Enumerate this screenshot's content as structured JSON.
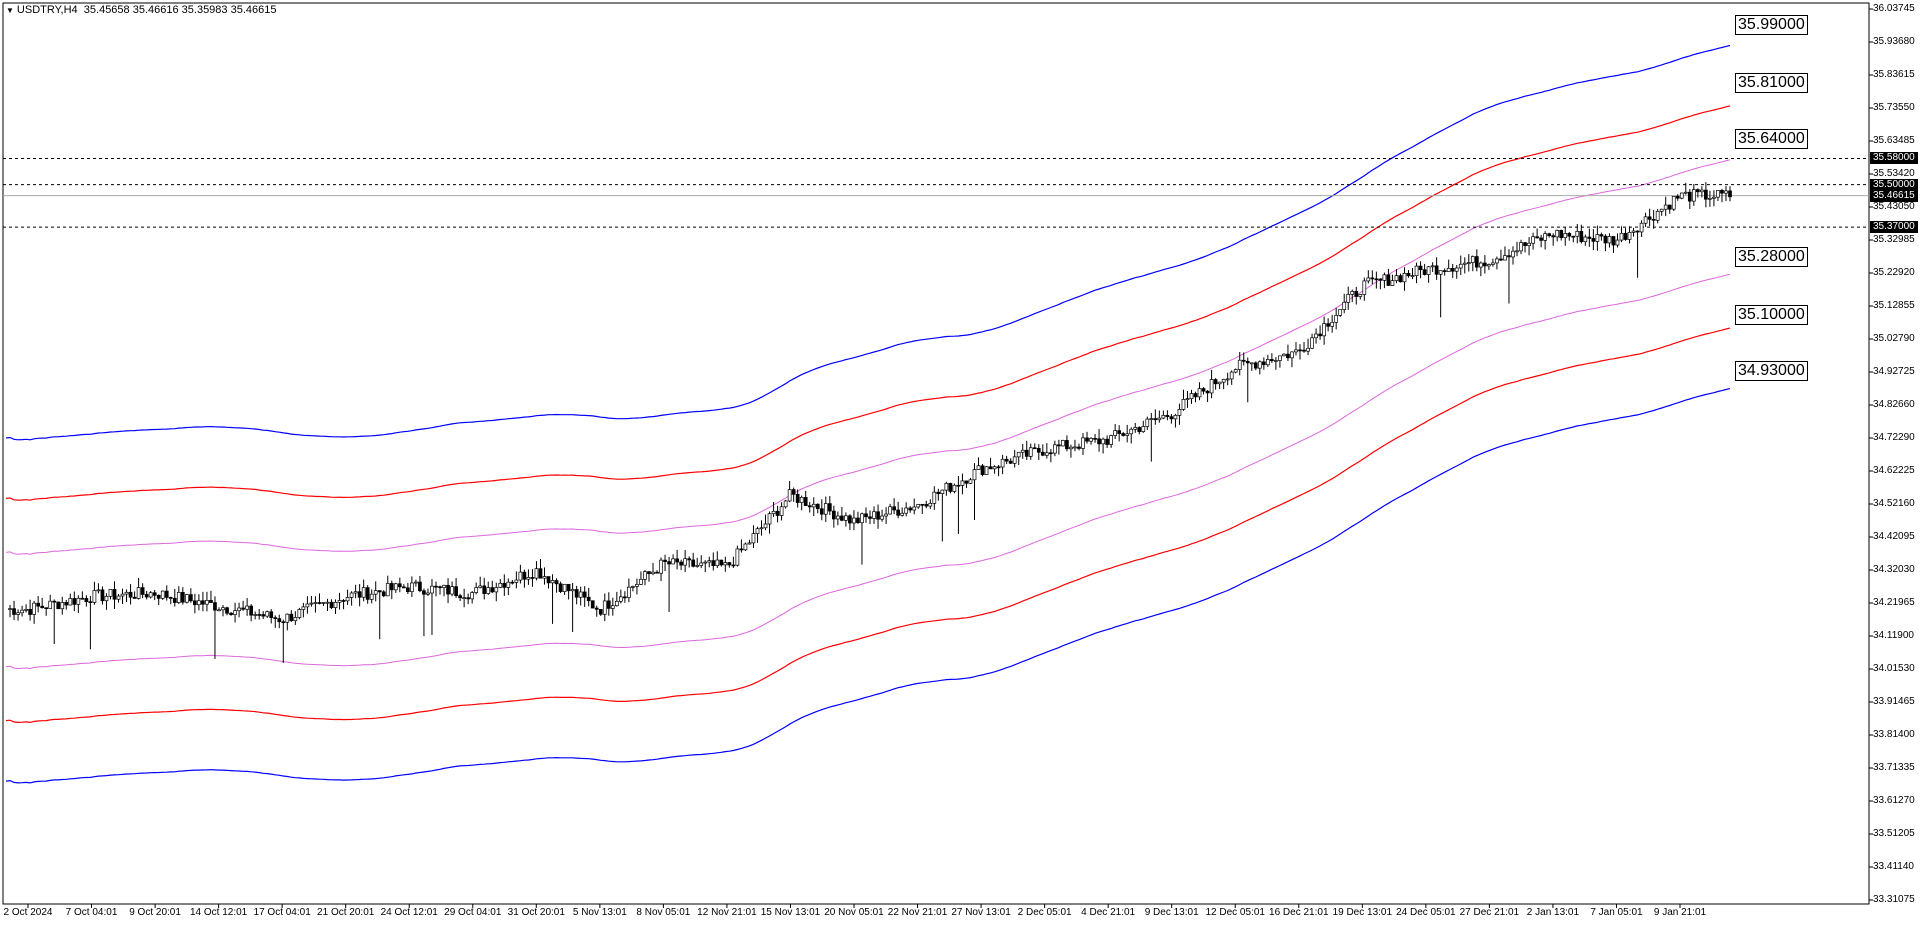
{
  "header": {
    "symbol": "USDTRY,H4",
    "ohlc": "35.45658 35.46616 35.35983 35.46615"
  },
  "price_axis": {
    "ticks": [
      "36.03745",
      "35.93680",
      "35.83615",
      "35.73550",
      "35.63485",
      "35.53420",
      "35.43050",
      "35.32985",
      "35.22920",
      "35.12855",
      "35.02790",
      "34.92725",
      "34.82660",
      "34.72290",
      "34.62225",
      "34.52160",
      "34.42095",
      "34.32030",
      "34.21965",
      "34.11900",
      "34.01530",
      "33.91465",
      "33.81400",
      "33.71335",
      "33.61270",
      "33.51205",
      "33.41140",
      "33.31075"
    ]
  },
  "time_axis": {
    "ticks": [
      "2 Oct 2024",
      "7 Oct 04:01",
      "9 Oct 20:01",
      "14 Oct 12:01",
      "17 Oct 04:01",
      "21 Oct 20:01",
      "24 Oct 12:01",
      "29 Oct 04:01",
      "31 Oct 20:01",
      "5 Nov 13:01",
      "8 Nov 05:01",
      "12 Nov 21:01",
      "15 Nov 13:01",
      "20 Nov 05:01",
      "22 Nov 21:01",
      "27 Nov 13:01",
      "2 Dec 05:01",
      "4 Dec 21:01",
      "9 Dec 13:01",
      "12 Dec 05:01",
      "16 Dec 21:01",
      "19 Dec 13:01",
      "24 Dec 05:01",
      "27 Dec 21:01",
      "2 Jan 13:01",
      "7 Jan 05:01",
      "9 Jan 21:01"
    ]
  },
  "horizontal_lines": [
    {
      "label": "35.58000",
      "price": 35.58,
      "style": "dashed"
    },
    {
      "label": "35.50000",
      "price": 35.5,
      "style": "dashed"
    },
    {
      "label": "35.37000",
      "price": 35.37,
      "style": "dashed"
    },
    {
      "label": "35.46615",
      "price": 35.46615,
      "style": "solid",
      "role": "bid"
    }
  ],
  "band_labels": [
    {
      "text": "35.99000",
      "price": 35.99,
      "color": "#0000ff"
    },
    {
      "text": "35.81000",
      "price": 35.81,
      "color": "#ff0000"
    },
    {
      "text": "35.64000",
      "price": 35.64,
      "color": "#dd66dd"
    },
    {
      "text": "35.28000",
      "price": 35.28,
      "color": "#dd66dd"
    },
    {
      "text": "35.10000",
      "price": 35.1,
      "color": "#ff0000"
    },
    {
      "text": "34.93000",
      "price": 34.93,
      "color": "#0000ff"
    }
  ],
  "colors": {
    "outer_band": "#0000ff",
    "middle_band": "#ff0000",
    "inner_band": "#dd66dd",
    "candles": "#000000",
    "grid_frame": "#000000"
  },
  "chart_data": {
    "type": "candlestick",
    "symbol": "USDTRY",
    "timeframe": "H4",
    "y_range": [
      33.31075,
      36.03745
    ],
    "close_path": [
      {
        "t": "2 Oct 2024",
        "close": 34.2
      },
      {
        "t": "7 Oct 04:01",
        "close": 34.24
      },
      {
        "t": "9 Oct 20:01",
        "close": 34.25
      },
      {
        "t": "14 Oct 12:01",
        "close": 34.21
      },
      {
        "t": "17 Oct 04:01",
        "close": 34.17
      },
      {
        "t": "21 Oct 20:01",
        "close": 34.24
      },
      {
        "t": "24 Oct 12:01",
        "close": 34.27
      },
      {
        "t": "29 Oct 04:01",
        "close": 34.25
      },
      {
        "t": "31 Oct 20:01",
        "close": 34.32
      },
      {
        "t": "5 Nov 13:01",
        "close": 34.2
      },
      {
        "t": "8 Nov 05:01",
        "close": 34.34
      },
      {
        "t": "12 Nov 21:01",
        "close": 34.33
      },
      {
        "t": "15 Nov 13:01",
        "close": 34.55
      },
      {
        "t": "20 Nov 05:01",
        "close": 34.47
      },
      {
        "t": "22 Nov 21:01",
        "close": 34.52
      },
      {
        "t": "27 Nov 13:01",
        "close": 34.63
      },
      {
        "t": "2 Dec 05:01",
        "close": 34.69
      },
      {
        "t": "4 Dec 21:01",
        "close": 34.72
      },
      {
        "t": "9 Dec 13:01",
        "close": 34.8
      },
      {
        "t": "12 Dec 05:01",
        "close": 34.94
      },
      {
        "t": "16 Dec 21:01",
        "close": 34.99
      },
      {
        "t": "19 Dec 13:01",
        "close": 35.19
      },
      {
        "t": "24 Dec 05:01",
        "close": 35.24
      },
      {
        "t": "27 Dec 21:01",
        "close": 35.27
      },
      {
        "t": "2 Jan 13:01",
        "close": 35.35
      },
      {
        "t": "7 Jan 05:01",
        "close": 35.33
      },
      {
        "t": "9 Jan 21:01",
        "close": 35.46615
      }
    ],
    "bands": {
      "outer_upper_end": 35.99,
      "middle_upper_end": 35.81,
      "inner_upper_end": 35.64,
      "inner_lower_end": 35.28,
      "middle_lower_end": 35.1,
      "outer_lower_end": 34.93
    }
  }
}
